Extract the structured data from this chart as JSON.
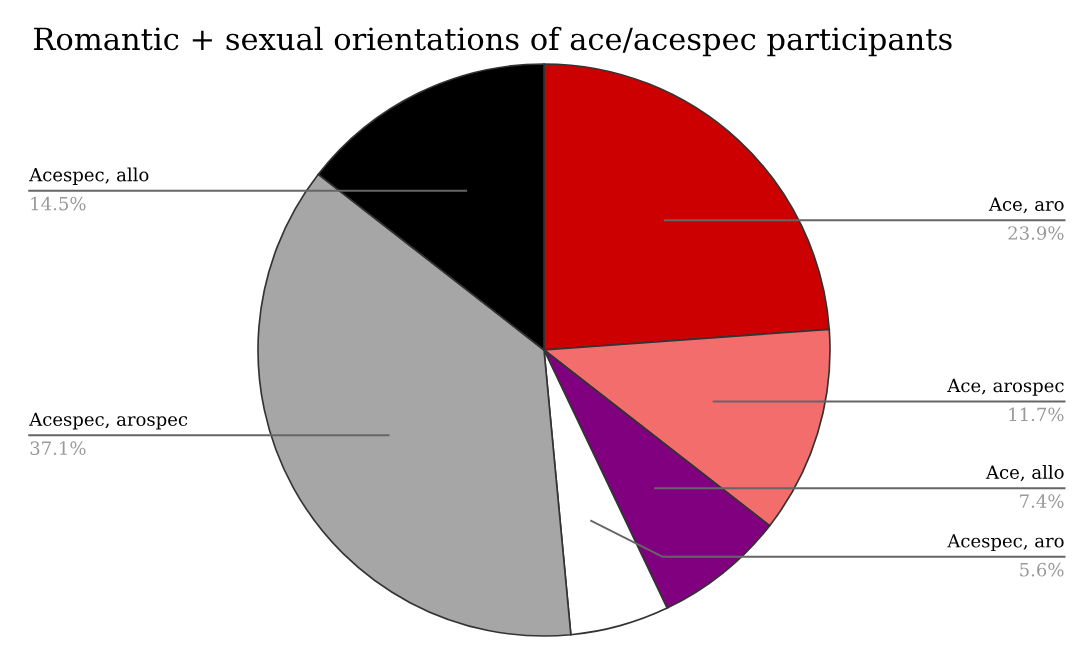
{
  "chart_data": {
    "type": "pie",
    "title": "Romantic + sexual orientations of ace/acespec participants",
    "categories": [
      "Ace, aro",
      "Ace, arospec",
      "Ace, allo",
      "Acespec, aro",
      "Acespec, arospec",
      "Acespec, allo"
    ],
    "values": [
      23.9,
      11.7,
      7.4,
      5.6,
      37.1,
      14.5
    ],
    "colors": [
      "#cc0000",
      "#f46d6d",
      "#800080",
      "#ffffff",
      "#a6a6a6",
      "#000000"
    ],
    "value_labels": [
      "23.9%",
      "11.7%",
      "7.4%",
      "5.6%",
      "37.1%",
      "14.5%"
    ],
    "legend": false
  }
}
